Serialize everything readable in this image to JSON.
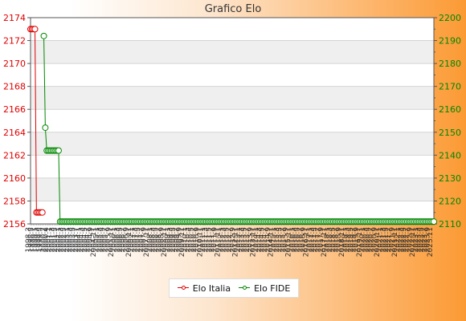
{
  "chart_data": {
    "type": "line",
    "title": "Grafico Elo",
    "x": [
      "1998.3",
      "1998.4",
      "1998.5",
      "1998.6",
      "1999.1",
      "1999.2",
      "1999.3",
      "1999.4",
      "1999.5",
      "2000.1",
      "2000.2",
      "2000.3",
      "2000.4",
      "2000.5",
      "2001.1",
      "2001.2",
      "2001.3",
      "2001.4",
      "2001.5",
      "2001.6",
      "2002.1",
      "2002.2",
      "2002.3",
      "2002.4",
      "2002.5",
      "2002.6",
      "2003.1",
      "2003.2",
      "2003.3",
      "2003.4",
      "2003.5",
      "2003.6",
      "2003.7",
      "2003.8",
      "2004.1",
      "2004.2",
      "2004.3",
      "2004.4",
      "2004.5",
      "2004.6",
      "2004.7",
      "2004.8",
      "2004.9",
      "2004.10",
      "2004.11",
      "2004.12",
      "2005.1",
      "2005.2",
      "2005.3",
      "2005.4",
      "2005.5",
      "2005.6",
      "2005.7",
      "2005.8",
      "2005.9",
      "2005.10",
      "2005.11",
      "2005.12",
      "2006.1",
      "2006.2",
      "2006.3",
      "2006.4",
      "2006.5",
      "2006.6",
      "2006.7",
      "2006.8",
      "2006.9",
      "2006.10",
      "2006.11",
      "2006.12",
      "2007.1",
      "2007.2",
      "2007.3",
      "2007.4",
      "2007.5",
      "2007.6",
      "2007.7",
      "2007.8",
      "2007.9",
      "2007.10",
      "2007.11",
      "2007.12",
      "2008.1",
      "2008.2",
      "2008.3",
      "2008.4",
      "2008.5",
      "2008.6",
      "2008.7",
      "2008.8",
      "2008.9",
      "2008.10",
      "2008.11",
      "2008.12",
      "2009.1",
      "2009.2",
      "2009.3",
      "2009.4",
      "2009.5",
      "2009.6",
      "2009.7",
      "2009.8",
      "2009.9",
      "2009.10",
      "2009.11",
      "2009.12",
      "2010.1",
      "2010.2",
      "2010.3",
      "2010.4",
      "2010.5",
      "2010.6",
      "2010.7",
      "2010.8",
      "2010.9",
      "2010.10",
      "2010.11",
      "2010.12",
      "2011.1",
      "2011.2",
      "2011.3",
      "2011.4",
      "2011.5",
      "2011.6",
      "2011.7",
      "2011.8",
      "2011.9",
      "2011.10",
      "2011.11",
      "2011.12",
      "2012.1",
      "2012.2",
      "2012.3",
      "2012.4",
      "2012.5",
      "2012.6",
      "2012.7",
      "2012.8",
      "2012.9",
      "2012.10",
      "2012.11",
      "2012.12",
      "2013.1",
      "2013.2",
      "2013.3",
      "2013.4",
      "2013.5",
      "2013.6",
      "2013.7",
      "2013.8",
      "2013.9",
      "2013.10",
      "2013.11",
      "2013.12",
      "2014.1",
      "2014.2",
      "2014.3",
      "2014.4",
      "2014.5",
      "2014.6",
      "2014.7",
      "2014.8",
      "2014.9",
      "2014.10",
      "2014.11",
      "2014.12",
      "2015.1",
      "2015.2",
      "2015.3",
      "2015.4",
      "2015.5",
      "2015.6",
      "2015.7",
      "2015.8",
      "2015.9",
      "2015.10",
      "2015.11",
      "2015.12",
      "2016.1",
      "2016.2",
      "2016.3",
      "2016.4",
      "2016.5",
      "2016.6",
      "2016.7",
      "2016.8",
      "2016.9",
      "2016.10",
      "2016.11",
      "2016.12",
      "2017.1",
      "2017.2",
      "2017.3",
      "2017.4",
      "2017.5",
      "2017.6",
      "2017.7",
      "2017.8",
      "2017.9",
      "2017.10",
      "2017.11",
      "2017.12",
      "2018.1",
      "2018.2",
      "2018.3",
      "2018.4",
      "2018.5",
      "2018.6",
      "2018.7",
      "2018.8",
      "2018.9",
      "2018.10",
      "2018.11",
      "2018.12",
      "2019.1",
      "2019.2",
      "2019.3",
      "2019.4",
      "2019.5",
      "2019.6",
      "2019.7",
      "2019.8",
      "2019.9",
      "2019.10",
      "2019.11",
      "2019.12",
      "2020.1",
      "2020.2",
      "2020.3",
      "2020.4",
      "2020.5",
      "2020.6",
      "2020.7",
      "2020.8",
      "2020.9",
      "2020.10",
      "2020.11",
      "2020.12",
      "2021.1",
      "2021.2",
      "2021.3",
      "2021.4",
      "2021.5",
      "2021.6",
      "2021.7",
      "2021.8",
      "2021.9",
      "2021.10",
      "2021.11",
      "2021.12",
      "2022.1",
      "2022.2",
      "2022.3",
      "2022.4",
      "2022.5",
      "2022.6",
      "2022.7",
      "2022.8",
      "2022.9",
      "2022.10",
      "2022.11",
      "2022.12",
      "2023.1",
      "2023.2",
      "2023.3",
      "2023.4",
      "2023.5",
      "2023.6",
      "2023.7",
      "2023.8",
      "2023.9",
      "2023.10",
      "2023.11",
      "2023.12"
    ],
    "ylim_left": [
      2156,
      2174
    ],
    "yticks_left": [
      2156,
      2158,
      2160,
      2162,
      2164,
      2166,
      2168,
      2170,
      2172,
      2174
    ],
    "ylim_right": [
      2110,
      2200
    ],
    "yticks_right": [
      2110,
      2120,
      2130,
      2140,
      2150,
      2160,
      2170,
      2180,
      2190,
      2200
    ],
    "grid": true,
    "legend_position": "bottom",
    "series": [
      {
        "name": "Elo Italia",
        "axis": "left",
        "color": "#e00000",
        "points": [
          [
            0,
            2173
          ],
          [
            1,
            2173
          ],
          [
            2,
            2173
          ],
          [
            3,
            2173
          ],
          [
            4,
            2157
          ],
          [
            5,
            2157
          ],
          [
            6,
            2157
          ],
          [
            7,
            2157
          ],
          [
            8,
            2157
          ]
        ]
      },
      {
        "name": "Elo FIDE",
        "axis": "right",
        "color": "#008800",
        "points": [
          [
            9,
            2192
          ],
          [
            10,
            2152
          ],
          [
            11,
            2142
          ],
          [
            12,
            2142
          ],
          [
            13,
            2142
          ],
          [
            14,
            2142
          ],
          [
            15,
            2142
          ],
          [
            16,
            2142
          ],
          [
            17,
            2142
          ],
          [
            18,
            2142
          ],
          [
            19,
            2142
          ],
          [
            20,
            2111
          ]
        ],
        "continue_to_end": 2111
      }
    ]
  }
}
